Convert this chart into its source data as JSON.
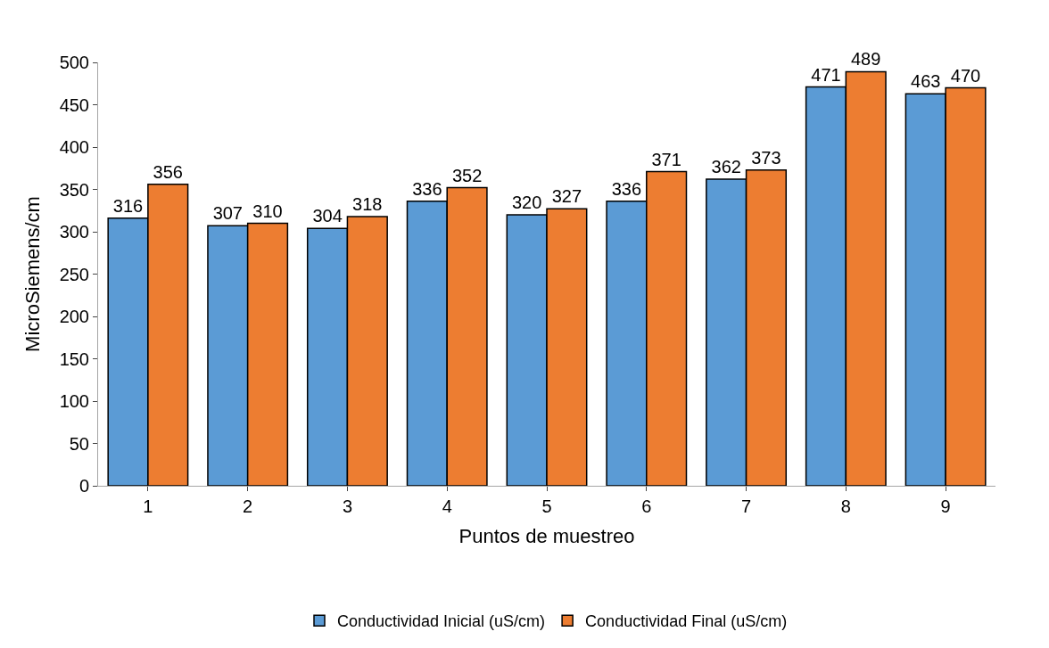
{
  "chart_data": {
    "type": "bar",
    "xlabel": "Puntos de muestreo",
    "ylabel": "MicroSiemens/cm",
    "categories": [
      "1",
      "2",
      "3",
      "4",
      "5",
      "6",
      "7",
      "8",
      "9"
    ],
    "series": [
      {
        "name": "Conductividad Inicial (uS/cm)",
        "color": "#5b9bd5",
        "values": [
          316,
          307,
          304,
          336,
          320,
          336,
          362,
          471,
          463
        ]
      },
      {
        "name": "Conductividad Final (uS/cm)",
        "color": "#ed7d31",
        "values": [
          356,
          310,
          318,
          352,
          327,
          371,
          373,
          489,
          470
        ]
      }
    ],
    "ylim": [
      0,
      500
    ],
    "yticks": [
      0,
      50,
      100,
      150,
      200,
      250,
      300,
      350,
      400,
      450,
      500
    ],
    "data_labels": true,
    "grid": false,
    "legend": "bottom"
  }
}
